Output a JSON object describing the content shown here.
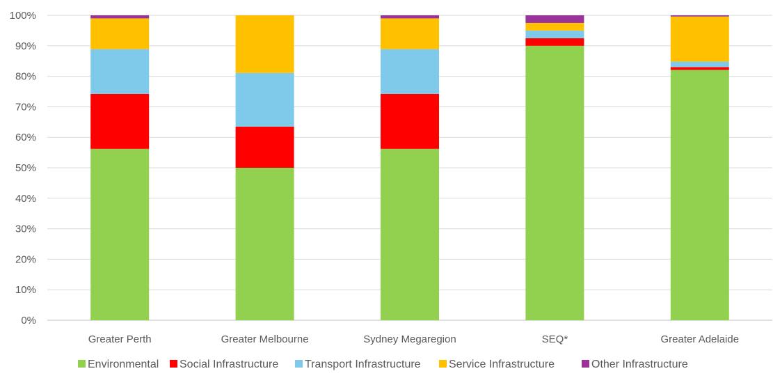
{
  "chart_data": {
    "type": "bar",
    "stacked": true,
    "percent": true,
    "title": "",
    "xlabel": "",
    "ylabel": "",
    "ylim": [
      0,
      100
    ],
    "y_ticks": [
      "0%",
      "10%",
      "20%",
      "30%",
      "40%",
      "50%",
      "60%",
      "70%",
      "80%",
      "90%",
      "100%"
    ],
    "grid": "horizontal",
    "legend_position": "bottom",
    "categories": [
      "Greater Perth",
      "Greater Melbourne",
      "Sydney Megaregion",
      "SEQ*",
      "Greater Adelaide"
    ],
    "series": [
      {
        "name": "Environmental",
        "color": "#92d050",
        "values": [
          56.2,
          50.0,
          56.2,
          90.0,
          82.1
        ]
      },
      {
        "name": "Social Infrastructure",
        "color": "#ff0000",
        "values": [
          18.0,
          13.5,
          18.0,
          2.5,
          0.9
        ]
      },
      {
        "name": "Transport Infrastructure",
        "color": "#7fcaea",
        "values": [
          14.7,
          17.6,
          14.7,
          2.5,
          1.8
        ]
      },
      {
        "name": "Service Infrastructure",
        "color": "#ffc000",
        "values": [
          10.1,
          18.9,
          10.1,
          2.5,
          14.8
        ]
      },
      {
        "name": "Other Infrastructure",
        "color": "#993399",
        "values": [
          1.0,
          0.0,
          1.0,
          2.5,
          0.4
        ]
      }
    ]
  }
}
